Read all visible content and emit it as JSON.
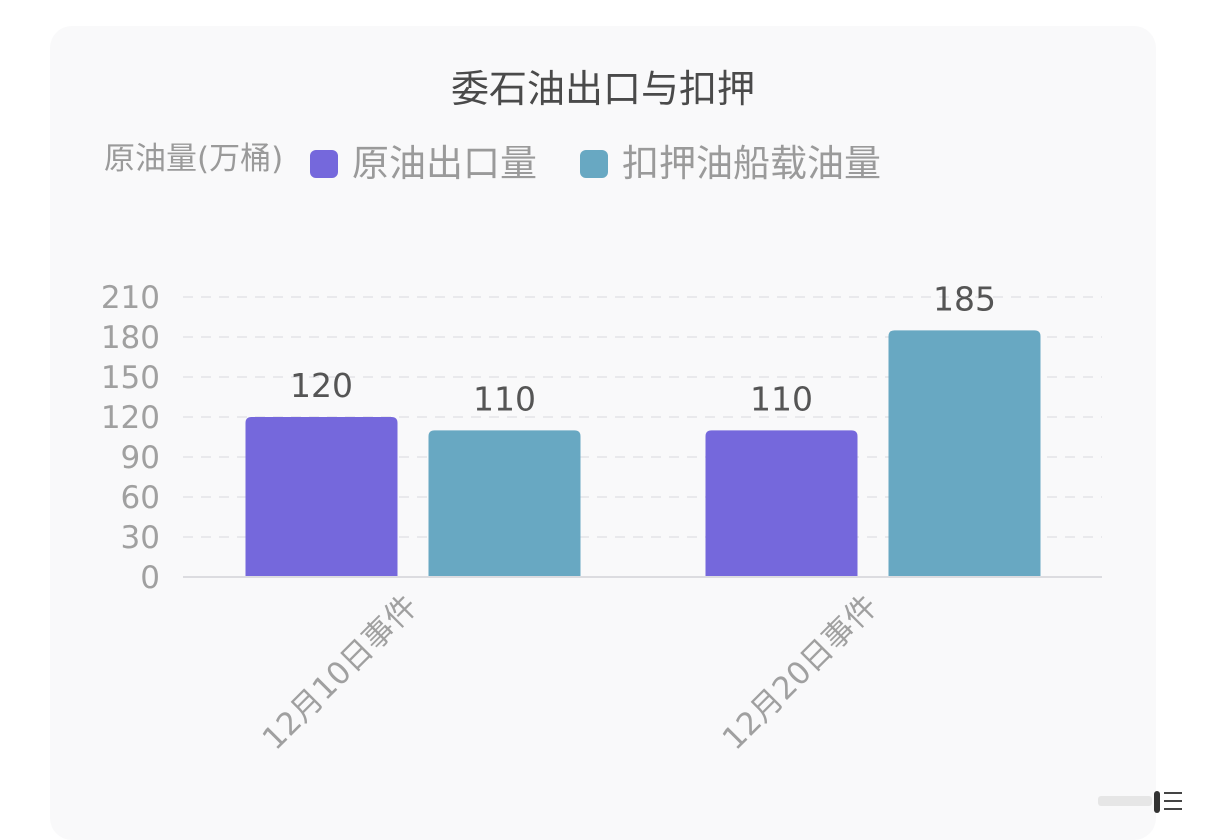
{
  "chart_data": {
    "type": "bar",
    "title": "委石油出口与扣押",
    "ylabel": "原油量(万桶)",
    "xlabel": "",
    "categories": [
      "12月10日事件",
      "12月20日事件"
    ],
    "series": [
      {
        "name": "原油出口量",
        "values": [
          120,
          110
        ],
        "color": "#7568dc"
      },
      {
        "name": "扣押油船载油量",
        "values": [
          110,
          185
        ],
        "color": "#68a8c2"
      }
    ],
    "yticks": [
      0,
      30,
      60,
      90,
      120,
      150,
      180,
      210
    ],
    "ylim": [
      0,
      210
    ],
    "grid": true,
    "legend": "top-left",
    "data_labels": true
  }
}
